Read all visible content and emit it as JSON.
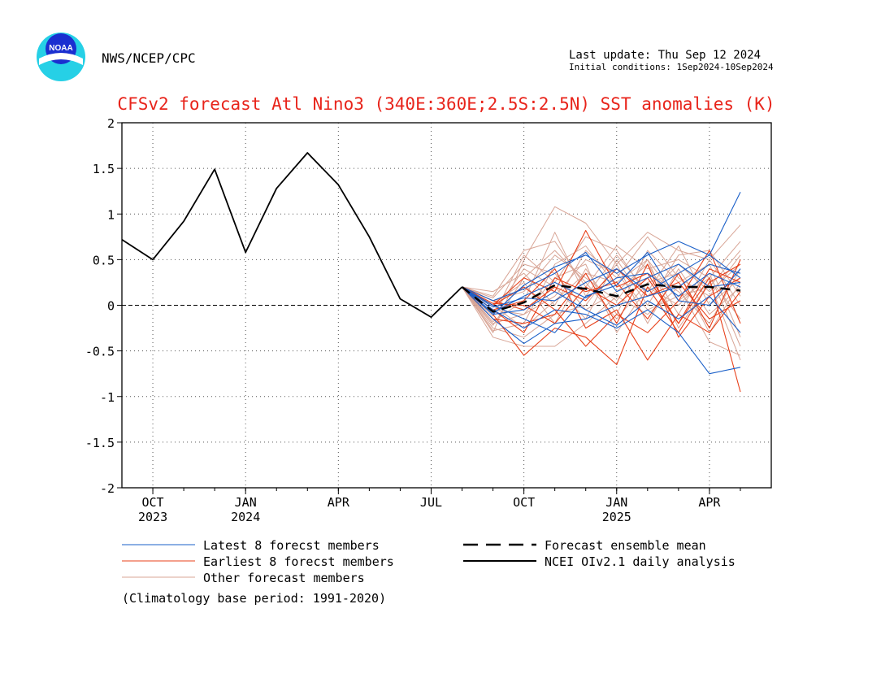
{
  "header": {
    "agency": "NWS/NCEP/CPC",
    "logo_text": "NOAA",
    "last_update": "Last update: Thu Sep 12 2024",
    "initial_conditions": "Initial conditions: 1Sep2024-10Sep2024"
  },
  "footer": {
    "climatology": "(Climatology base period: 1991-2020)"
  },
  "colors": {
    "title": "#e8241b",
    "latest": "#1a5fc8",
    "earliest": "#e8401a",
    "other": "#d8a596",
    "observed": "#000000",
    "mean": "#000000",
    "logo_outer": "#26d0e6",
    "logo_inner": "#1a2fd0"
  },
  "chart_data": {
    "type": "line",
    "title": "CFSv2 forecast Atl Nino3 (340E:360E;2.5S:2.5N) SST anomalies (K)",
    "ylim": [
      -2,
      2
    ],
    "xlim": [
      -1,
      20
    ],
    "y_ticks": [
      -2,
      -1.5,
      -1,
      -0.5,
      0,
      0.5,
      1,
      1.5,
      2
    ],
    "y_tick_labels": [
      "-2",
      "-1.5",
      "-1",
      "-0.5",
      "0",
      "0.5",
      "1",
      "1.5",
      "2"
    ],
    "x_ticks": [
      {
        "x": 0,
        "month": "OCT",
        "year": "2023"
      },
      {
        "x": 3,
        "month": "JAN",
        "year": "2024"
      },
      {
        "x": 6,
        "month": "APR",
        "year": ""
      },
      {
        "x": 9,
        "month": "JUL",
        "year": ""
      },
      {
        "x": 12,
        "month": "OCT",
        "year": ""
      },
      {
        "x": 15,
        "month": "JAN",
        "year": "2025"
      },
      {
        "x": 18,
        "month": "APR",
        "year": ""
      }
    ],
    "grid": true,
    "zero_line": true,
    "observed": {
      "name": "NCEI OIv2.1 daily analysis",
      "x": [
        -1,
        0,
        1,
        2,
        3,
        4,
        5,
        6,
        7,
        8,
        9,
        10
      ],
      "y": [
        0.72,
        0.5,
        0.92,
        1.49,
        0.58,
        1.28,
        1.67,
        1.32,
        0.75,
        0.07,
        -0.13,
        0.2
      ]
    },
    "ensemble_mean": {
      "name": "Forecast ensemble mean",
      "x": [
        10,
        11,
        12,
        13,
        14,
        15,
        16,
        17,
        18,
        19
      ],
      "y": [
        0.2,
        -0.07,
        0.03,
        0.22,
        0.18,
        0.1,
        0.23,
        0.2,
        0.2,
        0.16
      ]
    },
    "forecast_x": [
      10,
      11,
      12,
      13,
      14,
      15,
      16,
      17,
      18,
      19
    ],
    "latest_members": {
      "name": "Latest 8 forecst members",
      "series": [
        [
          0.2,
          -0.1,
          0.22,
          0.42,
          0.55,
          0.35,
          0.55,
          0.7,
          0.55,
          1.24
        ],
        [
          0.2,
          -0.05,
          -0.25,
          -0.05,
          -0.1,
          -0.25,
          -0.05,
          -0.3,
          -0.75,
          -0.68
        ],
        [
          0.2,
          -0.15,
          -0.42,
          -0.2,
          -0.15,
          0.0,
          0.1,
          0.2,
          0.45,
          0.35
        ],
        [
          0.2,
          0.05,
          0.18,
          0.35,
          0.58,
          0.15,
          0.3,
          0.45,
          0.2,
          0.25
        ],
        [
          0.2,
          -0.1,
          -0.05,
          0.15,
          -0.05,
          -0.22,
          0.05,
          -0.15,
          0.1,
          -0.3
        ],
        [
          0.2,
          -0.02,
          0.08,
          0.05,
          0.25,
          0.4,
          0.15,
          0.35,
          0.55,
          0.3
        ],
        [
          0.2,
          0.0,
          -0.15,
          -0.3,
          0.1,
          0.22,
          0.58,
          0.05,
          0.0,
          0.4
        ],
        [
          0.2,
          -0.08,
          0.1,
          0.25,
          0.08,
          0.3,
          0.35,
          0.1,
          0.35,
          0.2
        ]
      ]
    },
    "earliest_members": {
      "name": "Earliest 8 forecst members",
      "series": [
        [
          0.2,
          0.0,
          0.3,
          0.15,
          0.82,
          0.2,
          0.35,
          -0.2,
          0.3,
          -0.95
        ],
        [
          0.2,
          -0.1,
          -0.55,
          -0.25,
          -0.35,
          -0.65,
          0.2,
          -0.3,
          0.25,
          0.45
        ],
        [
          0.2,
          -0.05,
          0.05,
          0.4,
          -0.25,
          -0.05,
          -0.6,
          -0.1,
          -0.3,
          0.15
        ],
        [
          0.2,
          0.05,
          -0.05,
          0.2,
          0.05,
          0.4,
          0.1,
          0.25,
          -0.15,
          0.05
        ],
        [
          0.2,
          -0.15,
          -0.2,
          -0.1,
          0.35,
          -0.2,
          0.45,
          -0.35,
          0.1,
          0.3
        ],
        [
          0.2,
          0.0,
          0.2,
          -0.05,
          -0.45,
          -0.1,
          -0.3,
          0.05,
          0.6,
          -0.2
        ],
        [
          0.2,
          -0.05,
          -0.3,
          0.3,
          0.15,
          0.25,
          -0.15,
          0.35,
          -0.25,
          0.5
        ],
        [
          0.2,
          0.02,
          0.0,
          -0.2,
          0.2,
          0.0,
          0.3,
          -0.2,
          0.4,
          0.25
        ]
      ]
    },
    "other_members": {
      "name": "Other forecast members",
      "series": [
        [
          0.2,
          -0.3,
          0.5,
          1.08,
          0.9,
          0.45,
          0.8,
          0.6,
          0.5,
          0.88
        ],
        [
          0.2,
          -0.35,
          -0.45,
          -0.45,
          -0.2,
          0.1,
          -0.1,
          0.2,
          -0.4,
          -0.55
        ],
        [
          0.2,
          0.1,
          0.6,
          0.7,
          0.2,
          0.65,
          0.4,
          0.5,
          0.3,
          0.7
        ],
        [
          0.2,
          -0.2,
          -0.1,
          0.3,
          0.45,
          -0.3,
          0.2,
          0.0,
          0.35,
          -0.45
        ],
        [
          0.2,
          0.15,
          0.35,
          0.0,
          0.6,
          0.3,
          0.75,
          0.3,
          0.1,
          0.55
        ],
        [
          0.2,
          -0.25,
          -0.35,
          -0.1,
          0.0,
          0.45,
          -0.2,
          0.4,
          -0.1,
          0.2
        ],
        [
          0.2,
          0.05,
          0.15,
          0.55,
          0.3,
          0.05,
          0.5,
          -0.25,
          0.25,
          -0.6
        ],
        [
          0.2,
          -0.1,
          0.4,
          0.2,
          -0.15,
          0.5,
          0.0,
          0.55,
          0.6,
          0.1
        ],
        [
          0.2,
          -0.28,
          -0.2,
          0.45,
          0.65,
          0.2,
          0.35,
          0.15,
          -0.2,
          0.4
        ],
        [
          0.2,
          0.02,
          0.25,
          -0.2,
          0.4,
          -0.1,
          0.6,
          0.25,
          0.45,
          -0.35
        ],
        [
          0.2,
          -0.18,
          0.05,
          0.8,
          0.1,
          0.55,
          0.15,
          0.65,
          0.0,
          0.3
        ],
        [
          0.2,
          -0.05,
          -0.1,
          0.1,
          0.5,
          0.35,
          -0.05,
          0.1,
          0.2,
          0.6
        ],
        [
          0.2,
          0.08,
          0.45,
          0.35,
          -0.05,
          0.15,
          0.45,
          -0.1,
          0.5,
          0.0
        ],
        [
          0.2,
          -0.22,
          0.3,
          0.6,
          0.25,
          -0.15,
          0.25,
          0.35,
          -0.3,
          0.25
        ],
        [
          0.2,
          -0.12,
          0.55,
          0.25,
          0.75,
          0.6,
          0.1,
          0.45,
          0.15,
          0.45
        ],
        [
          0.2,
          0.0,
          -0.25,
          0.05,
          0.35,
          0.25,
          0.5,
          0.05,
          0.3,
          -0.15
        ]
      ]
    },
    "legend": {
      "placement": "bottom",
      "entries": [
        {
          "key": "latest",
          "label": "Latest 8 forecst members",
          "style": "thin-line"
        },
        {
          "key": "earliest",
          "label": "Earliest 8 forecst members",
          "style": "thin-line"
        },
        {
          "key": "other",
          "label": "Other forecast members",
          "style": "thin-line"
        },
        {
          "key": "mean",
          "label": "Forecast ensemble mean",
          "style": "dashed"
        },
        {
          "key": "observed",
          "label": "NCEI OIv2.1 daily analysis",
          "style": "solid"
        }
      ]
    }
  }
}
